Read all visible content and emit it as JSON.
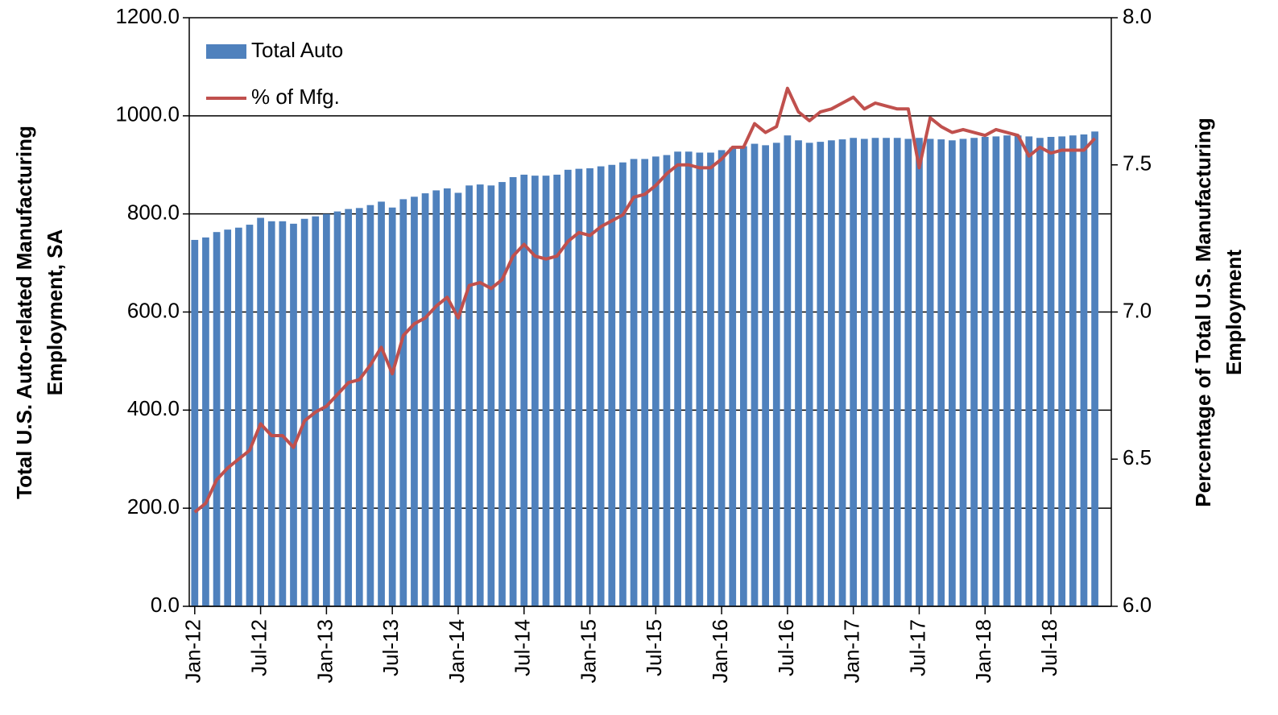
{
  "chart_data": {
    "type": "bar_line",
    "y_label": [
      "Total U.S. Auto-related Manufacturing",
      "Employment, SA"
    ],
    "y2_label": [
      "Percentage of Total U.S. Manufacturing",
      "Employment"
    ],
    "categories": [
      "Jan-12",
      null,
      null,
      null,
      null,
      null,
      "Jul-12",
      null,
      null,
      null,
      null,
      null,
      "Jan-13",
      null,
      null,
      null,
      null,
      null,
      "Jul-13",
      null,
      null,
      null,
      null,
      null,
      "Jan-14",
      null,
      null,
      null,
      null,
      null,
      "Jul-14",
      null,
      null,
      null,
      null,
      null,
      "Jan-15",
      null,
      null,
      null,
      null,
      null,
      "Jul-15",
      null,
      null,
      null,
      null,
      null,
      "Jan-16",
      null,
      null,
      null,
      null,
      null,
      "Jul-16",
      null,
      null,
      null,
      null,
      null,
      "Jan-17",
      null,
      null,
      null,
      null,
      null,
      "Jul-17",
      null,
      null,
      null,
      null,
      null,
      "Jan-18",
      null,
      null,
      null,
      null,
      null,
      "Jul-18",
      null,
      null,
      null,
      null
    ],
    "series": [
      {
        "name": "Total Auto",
        "type": "bar",
        "color": "#4f81bd",
        "values": [
          747,
          752,
          763,
          768,
          772,
          778,
          792,
          785,
          785,
          780,
          790,
          795,
          800,
          805,
          810,
          812,
          818,
          825,
          813,
          830,
          835,
          842,
          848,
          852,
          843,
          858,
          860,
          858,
          865,
          875,
          880,
          878,
          878,
          880,
          890,
          892,
          893,
          897,
          900,
          905,
          912,
          912,
          917,
          920,
          927,
          927,
          925,
          925,
          930,
          935,
          938,
          943,
          940,
          945,
          960,
          950,
          945,
          947,
          950,
          952,
          955,
          953,
          955,
          955,
          955,
          953,
          955,
          953,
          952,
          950,
          953,
          955,
          957,
          958,
          960,
          960,
          958,
          955,
          957,
          958,
          960,
          962,
          968
        ]
      },
      {
        "name": "% of Mfg.",
        "type": "line",
        "axis": "y2",
        "color": "#c0504d",
        "values": [
          6.32,
          6.35,
          6.43,
          6.47,
          6.5,
          6.53,
          6.62,
          6.58,
          6.58,
          6.54,
          6.63,
          6.66,
          6.68,
          6.72,
          6.76,
          6.77,
          6.82,
          6.88,
          6.79,
          6.92,
          6.96,
          6.98,
          7.02,
          7.05,
          6.98,
          7.09,
          7.1,
          7.08,
          7.11,
          7.19,
          7.23,
          7.19,
          7.18,
          7.19,
          7.24,
          7.27,
          7.26,
          7.29,
          7.31,
          7.33,
          7.39,
          7.4,
          7.43,
          7.47,
          7.5,
          7.5,
          7.49,
          7.49,
          7.52,
          7.56,
          7.56,
          7.64,
          7.61,
          7.63,
          7.76,
          7.68,
          7.65,
          7.68,
          7.69,
          7.71,
          7.73,
          7.69,
          7.71,
          7.7,
          7.69,
          7.69,
          7.49,
          7.66,
          7.63,
          7.61,
          7.62,
          7.61,
          7.6,
          7.62,
          7.61,
          7.6,
          7.53,
          7.56,
          7.54,
          7.55,
          7.55,
          7.55,
          7.59
        ]
      }
    ],
    "ylim": [
      0,
      1200
    ],
    "yticks": [
      {
        "value": 0,
        "label": "0.0"
      },
      {
        "value": 200,
        "label": "200.0"
      },
      {
        "value": 400,
        "label": "400.0"
      },
      {
        "value": 600,
        "label": "600.0"
      },
      {
        "value": 800,
        "label": "800.0"
      },
      {
        "value": 1000,
        "label": "1000.0"
      },
      {
        "value": 1200,
        "label": "1200.0"
      }
    ],
    "y2lim": [
      6,
      8
    ],
    "y2ticks": [
      {
        "value": 6,
        "label": "6.0"
      },
      {
        "value": 6.5,
        "label": "6.5"
      },
      {
        "value": 7,
        "label": "7.0"
      },
      {
        "value": 7.5,
        "label": "7.5"
      },
      {
        "value": 8,
        "label": "8.0"
      }
    ],
    "grid": true,
    "legend": "top-left"
  }
}
